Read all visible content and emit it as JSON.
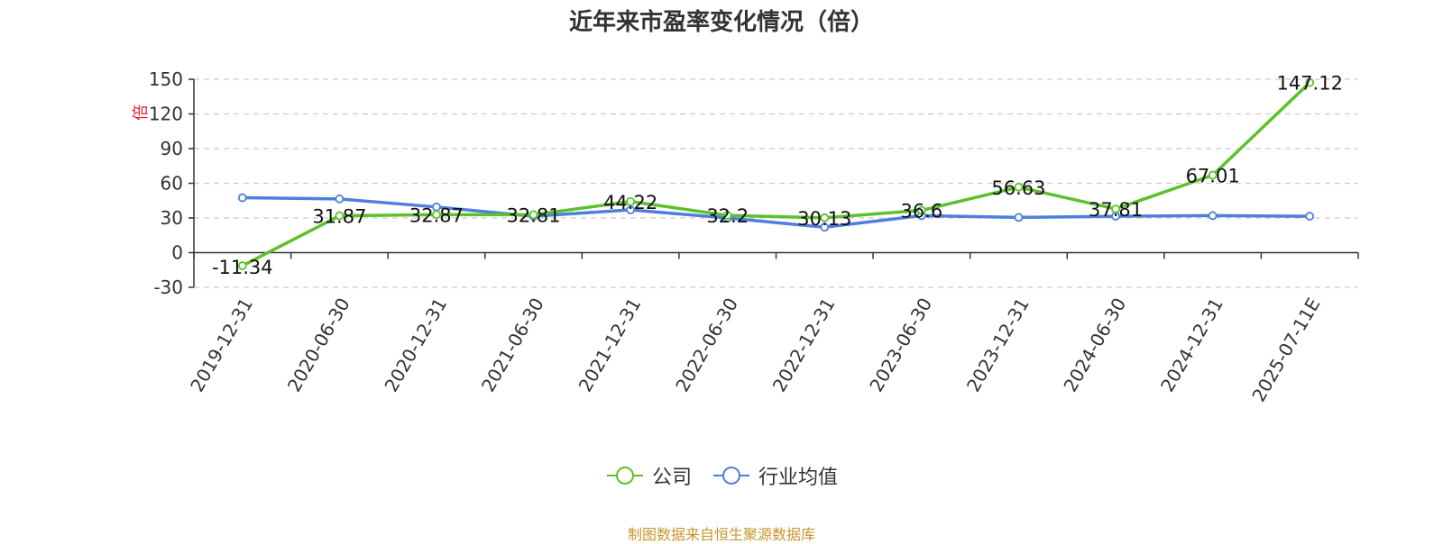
{
  "chart_data": {
    "type": "line",
    "title": "近年来市盈率变化情况（倍）",
    "ylabel": "倍",
    "categories": [
      "2019-12-31",
      "2020-06-30",
      "2020-12-31",
      "2021-06-30",
      "2021-12-31",
      "2022-06-30",
      "2022-12-31",
      "2023-06-30",
      "2023-12-31",
      "2024-06-30",
      "2024-12-31",
      "2025-07-11E"
    ],
    "ylim": [
      -30,
      150
    ],
    "yticks": [
      "-30",
      "0",
      "30",
      "60",
      "90",
      "120",
      "150"
    ],
    "grid": true,
    "legend_position": "bottom",
    "series": [
      {
        "name": "公司",
        "color": "#5cc12b",
        "values": [
          -11.34,
          31.87,
          32.87,
          32.81,
          44.22,
          32.2,
          30.13,
          36.6,
          56.63,
          37.81,
          67.01,
          147.12
        ],
        "labels": [
          "-11.34",
          "31.87",
          "32.87",
          "32.81",
          "44.22",
          "32.2",
          "30.13",
          "36.6",
          "56.63",
          "37.81",
          "67.01",
          "147.12"
        ]
      },
      {
        "name": "行业均值",
        "color": "#4f7fdc",
        "values": [
          47.5,
          46.5,
          39.5,
          31.5,
          37.0,
          30.0,
          22.0,
          32.0,
          30.5,
          31.5,
          32.0,
          31.5
        ]
      }
    ]
  },
  "source": "制图数据来自恒生聚源数据库"
}
